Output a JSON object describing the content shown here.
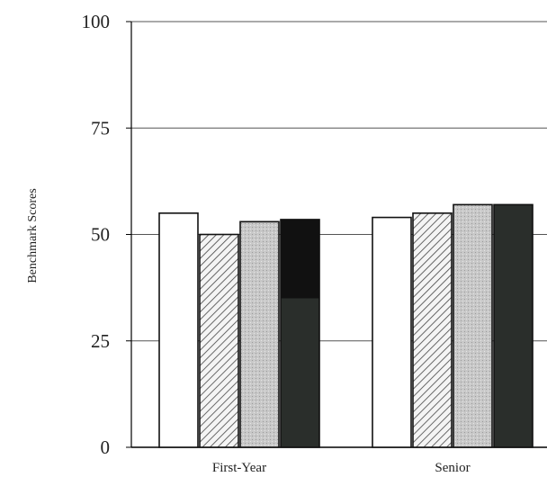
{
  "chart_data": {
    "type": "bar",
    "title": "",
    "xlabel": "",
    "ylabel": "Benchmark Scores",
    "ylim": [
      0,
      100
    ],
    "yticks": [
      "0",
      "25",
      "50",
      "75",
      "100"
    ],
    "categories": [
      "First-Year",
      "Senior"
    ],
    "grid": true,
    "legend": "none",
    "series": [
      {
        "values": [
          55,
          54
        ],
        "fill": "white"
      },
      {
        "values": [
          50,
          55
        ],
        "fill": "hatched"
      },
      {
        "values": [
          53,
          57
        ],
        "fill": "light-gray-stipple"
      },
      {
        "values": [
          53.5,
          57
        ],
        "fill": "dark"
      }
    ],
    "colors": {
      "axis": "#000000",
      "grid": "#555555",
      "bar_stroke": "#111111",
      "dark_fill": "#2a2e2b",
      "black_fill": "#111111",
      "stipple_fill": "#c8c8c8",
      "hatch_stroke": "#444444"
    }
  }
}
